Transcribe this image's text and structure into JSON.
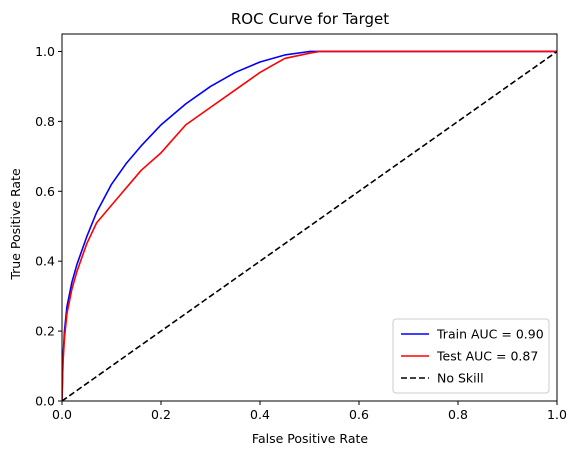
{
  "chart_data": {
    "type": "line",
    "title": "ROC Curve for Target",
    "xlabel": "False Positive Rate",
    "ylabel": "True Positive Rate",
    "xlim": [
      0.0,
      1.0
    ],
    "ylim": [
      0.0,
      1.05
    ],
    "xticks": [
      0.0,
      0.2,
      0.4,
      0.6,
      0.8,
      1.0
    ],
    "yticks": [
      0.0,
      0.2,
      0.4,
      0.6,
      0.8,
      1.0
    ],
    "xtick_labels": [
      "0.0",
      "0.2",
      "0.4",
      "0.6",
      "0.8",
      "1.0"
    ],
    "ytick_labels": [
      "0.0",
      "0.2",
      "0.4",
      "0.6",
      "0.8",
      "1.0"
    ],
    "grid": false,
    "legend_position": "lower-right",
    "series": [
      {
        "name": "Train AUC = 0.90",
        "color": "#0000ff",
        "style": "solid",
        "x": [
          0.0,
          0.002,
          0.005,
          0.01,
          0.02,
          0.03,
          0.05,
          0.07,
          0.1,
          0.13,
          0.16,
          0.2,
          0.25,
          0.3,
          0.35,
          0.4,
          0.45,
          0.5,
          0.55,
          0.6,
          0.7,
          0.8,
          0.9,
          1.0
        ],
        "y": [
          0.0,
          0.12,
          0.2,
          0.27,
          0.34,
          0.39,
          0.47,
          0.54,
          0.62,
          0.68,
          0.73,
          0.79,
          0.85,
          0.9,
          0.94,
          0.97,
          0.99,
          1.0,
          1.0,
          1.0,
          1.0,
          1.0,
          1.0,
          1.0
        ]
      },
      {
        "name": "Test AUC = 0.87",
        "color": "#ff0000",
        "style": "solid",
        "x": [
          0.0,
          0.002,
          0.005,
          0.01,
          0.02,
          0.03,
          0.05,
          0.07,
          0.1,
          0.13,
          0.16,
          0.2,
          0.25,
          0.3,
          0.35,
          0.4,
          0.45,
          0.5,
          0.52,
          0.55,
          0.6,
          0.7,
          0.8,
          0.9,
          1.0
        ],
        "y": [
          0.0,
          0.11,
          0.18,
          0.25,
          0.32,
          0.37,
          0.45,
          0.51,
          0.56,
          0.61,
          0.66,
          0.71,
          0.79,
          0.84,
          0.89,
          0.94,
          0.98,
          0.995,
          1.0,
          1.0,
          1.0,
          1.0,
          1.0,
          1.0,
          1.0
        ]
      },
      {
        "name": "No Skill",
        "color": "#000000",
        "style": "dashed",
        "x": [
          0.0,
          1.0
        ],
        "y": [
          0.0,
          1.0
        ]
      }
    ]
  }
}
